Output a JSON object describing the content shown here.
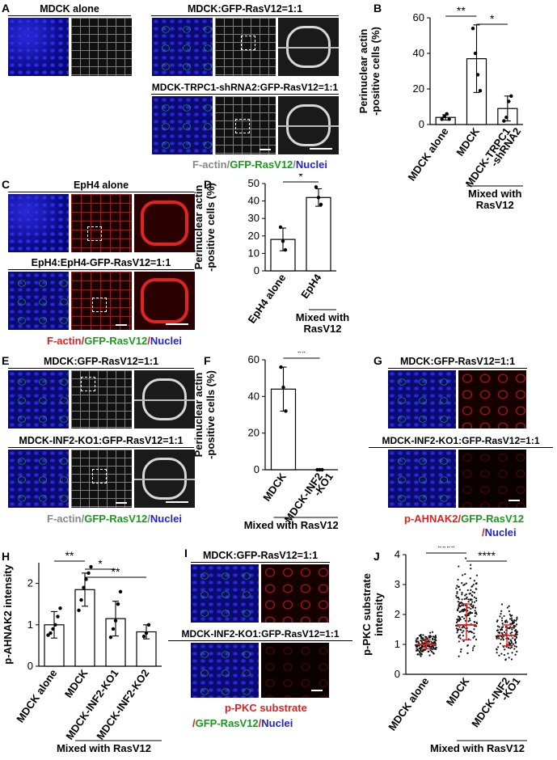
{
  "panels": {
    "A": {
      "letter": "A",
      "hdr1": "MDCK alone",
      "hdr2": "MDCK:GFP-RasV12=1:1",
      "hdr3": "MDCK-TRPC1-shRNA2:GFP-RasV12=1:1",
      "legend": {
        "p1": "F-actin",
        "p2": "/",
        "p3": "GFP-RasV12",
        "p4": "/",
        "p5": "Nuclei"
      }
    },
    "C": {
      "letter": "C",
      "hdr1": "EpH4 alone",
      "hdr2": "EpH4:EpH4-GFP-RasV12=1:1",
      "legend": {
        "p1": "F-actin",
        "p2": "/",
        "p3": "GFP-RasV12",
        "p4": "/",
        "p5": "Nuclei"
      }
    },
    "E": {
      "letter": "E",
      "hdr1": "MDCK:GFP-RasV12=1:1",
      "hdr2": "MDCK-INF2-KO1:GFP-RasV12=1:1",
      "legend": {
        "p1": "F-actin",
        "p2": "/",
        "p3": "GFP-RasV12",
        "p4": "/",
        "p5": "Nuclei"
      }
    },
    "G": {
      "letter": "G",
      "hdr1": "MDCK:GFP-RasV12=1:1",
      "hdr2": "MDCK-INF2-KO1:GFP-RasV12=1:1",
      "legend1": {
        "p1": "p-AHNAK2",
        "p2": "/",
        "p3": "GFP-RasV12"
      },
      "legend2": {
        "p1": "/",
        "p2": "Nuclei"
      }
    },
    "I": {
      "letter": "I",
      "hdr1": "MDCK:GFP-RasV12=1:1",
      "hdr2": "MDCK-INF2-KO1:GFP-RasV12=1:1",
      "legend1": {
        "p1": "p-PKC substrate"
      },
      "legend2": {
        "p1": "/",
        "p2": "GFP-RasV12",
        "p3": "/",
        "p4": "Nuclei"
      }
    }
  },
  "chart_data": [
    {
      "panel": "B",
      "type": "bar",
      "categories": [
        "MDCK alone",
        "MDCK",
        "MDCK-TRPC1\n-shRNA2"
      ],
      "values": [
        4,
        37,
        9
      ],
      "errors": [
        1.5,
        19,
        7
      ],
      "points": [
        [
          3,
          4.5,
          6,
          3
        ],
        [
          54,
          40,
          28,
          19
        ],
        [
          2,
          4,
          13,
          16
        ]
      ],
      "ylabel": "Perinuclear actin\n-positive cells (%)",
      "ylim": [
        0,
        60
      ],
      "yticks": [
        0,
        20,
        40,
        60
      ],
      "group_label": "Mixed with\nRasV12",
      "significance": [
        {
          "from": 0,
          "to": 1,
          "label": "**"
        },
        {
          "from": 1,
          "to": 2,
          "label": "*"
        }
      ]
    },
    {
      "panel": "D",
      "type": "bar",
      "categories": [
        "EpH4 alone",
        "EpH4"
      ],
      "values": [
        18,
        42
      ],
      "errors": [
        6.5,
        5
      ],
      "points": [
        [
          25,
          17,
          12
        ],
        [
          48,
          42,
          38
        ]
      ],
      "ylabel": "Perinuclear actin\n-positive cells (%)",
      "ylim": [
        0,
        50
      ],
      "yticks": [
        0,
        10,
        20,
        30,
        40,
        50
      ],
      "group_label": "Mixed with\nRasV12",
      "significance": [
        {
          "from": 0,
          "to": 1,
          "label": "*"
        }
      ]
    },
    {
      "panel": "F",
      "type": "bar",
      "categories": [
        "MDCK",
        "MDCK-INF2\n-KO1"
      ],
      "values": [
        44,
        0
      ],
      "errors": [
        12,
        0
      ],
      "points": [
        [
          56,
          45,
          32
        ],
        [
          0,
          0,
          0
        ]
      ],
      "ylabel": "Perinuclear actin\n-positive cells (%)",
      "ylim": [
        0,
        60
      ],
      "yticks": [
        0,
        20,
        40,
        60
      ],
      "group_label": "Mixed with RasV12",
      "significance": [
        {
          "from": 0,
          "to": 1,
          "label": "**"
        }
      ]
    },
    {
      "panel": "H",
      "type": "bar",
      "categories": [
        "MDCK alone",
        "MDCK",
        "MDCK-INF2-KO1",
        "MDCK-INF2-KO2"
      ],
      "values": [
        1.0,
        1.85,
        1.15,
        0.83
      ],
      "errors": [
        0.32,
        0.4,
        0.42,
        0.17
      ],
      "points": [
        [
          0.75,
          0.8,
          0.9,
          1.0,
          1.2,
          1.4
        ],
        [
          1.35,
          1.6,
          1.9,
          2.1,
          2.25,
          2.4
        ],
        [
          0.7,
          0.9,
          1.1,
          1.5,
          1.8
        ],
        [
          0.72,
          0.8,
          1.0
        ]
      ],
      "ylabel": "p-AHNAK2 intensity",
      "ylim": [
        0,
        2.5
      ],
      "yticks": [
        0,
        1,
        2
      ],
      "group_label": "Mixed with RasV12",
      "significance": [
        {
          "from": 0,
          "to": 1,
          "label": "**"
        },
        {
          "from": 1,
          "to": 2,
          "label": "*"
        },
        {
          "from": 1,
          "to": 3,
          "label": "**"
        }
      ]
    },
    {
      "panel": "J",
      "type": "scatter",
      "categories": [
        "MDCK alone",
        "MDCK",
        "MDCK-INF2\n-KO1"
      ],
      "medians": [
        1.0,
        1.65,
        1.3
      ],
      "q1": [
        0.85,
        1.15,
        0.95
      ],
      "q3": [
        1.15,
        2.35,
        1.65
      ],
      "ranges": [
        [
          0.55,
          1.55
        ],
        [
          0.35,
          4.0
        ],
        [
          0.3,
          2.5
        ]
      ],
      "counts": [
        160,
        190,
        150
      ],
      "ylabel": "p-PKC substrate\nintensity",
      "ylim": [
        0,
        4
      ],
      "yticks": [
        0,
        1,
        2,
        3,
        4
      ],
      "group_label": "Mixed with RasV12",
      "significance": [
        {
          "from": 0,
          "to": 1,
          "label": "****"
        },
        {
          "from": 1,
          "to": 2,
          "label": "****"
        }
      ]
    }
  ],
  "letters": {
    "B": "B",
    "D": "D",
    "F": "F",
    "H": "H",
    "J": "J"
  }
}
